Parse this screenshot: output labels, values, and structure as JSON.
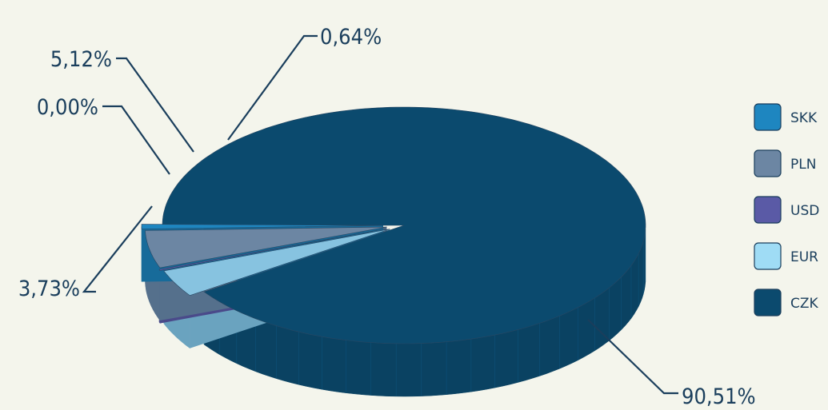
{
  "chart_data": {
    "type": "pie",
    "title": "",
    "legend": {
      "position": "right"
    },
    "slices": [
      {
        "label": "CZK",
        "value": 90.51,
        "value_label": "90,51%",
        "color": "#0b4a6e",
        "side_color": "#0a4262"
      },
      {
        "label": "EUR",
        "value": 3.73,
        "value_label": "3,73%",
        "color": "#87c3e0",
        "side_color": "#6aa3bf"
      },
      {
        "label": "USD",
        "value": 0.0,
        "value_label": "0,00%",
        "color": "#5a5aa6",
        "side_color": "#4a4a8a"
      },
      {
        "label": "PLN",
        "value": 5.12,
        "value_label": "5,12%",
        "color": "#6c86a3",
        "side_color": "#55708c"
      },
      {
        "label": "SKK",
        "value": 0.64,
        "value_label": "0,64%",
        "color": "#1e86c0",
        "side_color": "#176b9a"
      }
    ],
    "legend_order": [
      "SKK",
      "PLN",
      "USD",
      "EUR",
      "CZK"
    ],
    "legend_colors": {
      "SKK": "#1e86c0",
      "PLN": "#6c86a3",
      "USD": "#5a5aa6",
      "EUR": "#9fdcf5",
      "CZK": "#0b4a6e"
    },
    "label_color": "#1a3e5c"
  }
}
